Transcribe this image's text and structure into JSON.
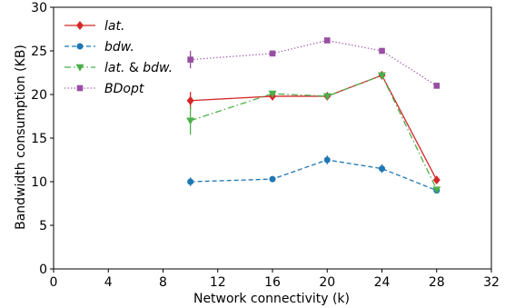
{
  "chart_data": {
    "type": "line",
    "xlabel": "Network connectivity (k)",
    "ylabel": "Bandwidth consumption (KB)",
    "xlim": [
      0,
      32
    ],
    "ylim": [
      0,
      30
    ],
    "xticks": [
      0,
      4,
      8,
      12,
      16,
      20,
      24,
      28,
      32
    ],
    "yticks": [
      0,
      5,
      10,
      15,
      20,
      25,
      30
    ],
    "grid": false,
    "legend_position": "top-left",
    "series": [
      {
        "name": "lat.",
        "color": "#d62728",
        "line_style": "solid",
        "marker": "diamond",
        "x": [
          10,
          16,
          20,
          24,
          28
        ],
        "y": [
          19.3,
          19.8,
          19.8,
          22.2,
          10.2
        ],
        "err": [
          1.0,
          0.3,
          0.3,
          0.3,
          0.2
        ]
      },
      {
        "name": "bdw.",
        "color": "#1f77b4",
        "line_style": "dashed",
        "marker": "circle",
        "x": [
          10,
          16,
          20,
          24,
          28
        ],
        "y": [
          10.0,
          10.3,
          12.5,
          11.5,
          9.0
        ],
        "err": [
          0.5,
          0.2,
          0.5,
          0.5,
          0.2
        ]
      },
      {
        "name": "lat. & bdw.",
        "name_parts": [
          "lat.",
          " & ",
          "bdw."
        ],
        "color": "#4daf4a",
        "line_style": "dashdot",
        "marker": "triangle-down",
        "x": [
          10,
          16,
          20,
          24,
          28
        ],
        "y": [
          17.0,
          20.1,
          19.8,
          22.2,
          9.1
        ],
        "err": [
          1.6,
          0.3,
          0.3,
          0.3,
          0.2
        ]
      },
      {
        "name": "BDopt",
        "color": "#984ea3",
        "line_style": "dotted",
        "marker": "square",
        "x": [
          10,
          16,
          20,
          24,
          28
        ],
        "y": [
          24.0,
          24.7,
          26.2,
          25.0,
          21.0
        ],
        "err": [
          1.0,
          0.2,
          0.2,
          0.2,
          0.2
        ]
      }
    ]
  }
}
